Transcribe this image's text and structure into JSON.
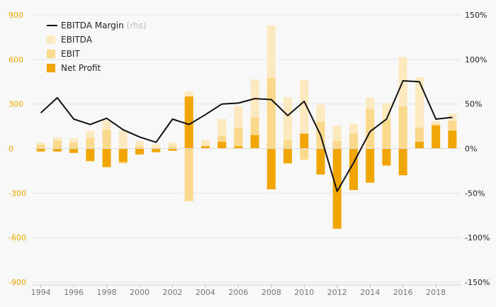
{
  "chart_data": {
    "type": "bar",
    "x": [
      1994,
      1995,
      1996,
      1997,
      1998,
      1999,
      2000,
      2001,
      2002,
      2003,
      2004,
      2005,
      2006,
      2007,
      2008,
      2009,
      2010,
      2011,
      2012,
      2013,
      2014,
      2015,
      2016,
      2017,
      2018,
      2019
    ],
    "x_tick_labels": [
      "1994",
      "1996",
      "1998",
      "2000",
      "2002",
      "2004",
      "2006",
      "2008",
      "2010",
      "2012",
      "2014",
      "2016",
      "2018"
    ],
    "series": [
      {
        "name": "EBITDA",
        "axis": "left",
        "color": "#fde9bf",
        "values": [
          40,
          75,
          70,
          120,
          185,
          120,
          50,
          30,
          40,
          385,
          60,
          200,
          285,
          465,
          830,
          345,
          460,
          295,
          155,
          165,
          345,
          305,
          615,
          480,
          185,
          235
        ]
      },
      {
        "name": "EBIT",
        "axis": "left",
        "color": "#fbd98c",
        "values": [
          25,
          55,
          40,
          70,
          125,
          -100,
          15,
          5,
          15,
          -355,
          20,
          85,
          140,
          210,
          475,
          55,
          -75,
          180,
          50,
          100,
          265,
          195,
          285,
          140,
          165,
          185
        ]
      },
      {
        "name": "Net Profit",
        "axis": "left",
        "color": "#f0a500",
        "values": [
          -20,
          -20,
          -30,
          -85,
          -125,
          -90,
          -40,
          -25,
          -15,
          350,
          15,
          45,
          15,
          90,
          -275,
          -100,
          100,
          -175,
          -540,
          -280,
          -230,
          -115,
          -180,
          45,
          155,
          120
        ]
      },
      {
        "name": "EBITDA Margin",
        "axis": "right",
        "color": "#111111",
        "values": [
          40,
          57,
          33,
          27,
          34,
          21,
          13,
          7,
          33,
          27,
          38,
          50,
          51,
          56,
          55,
          37,
          53,
          15,
          -48,
          -16,
          19,
          33,
          76,
          75,
          33,
          35
        ]
      }
    ],
    "legend_suffix": "(rhs)",
    "y_left": {
      "min": -900,
      "max": 900,
      "ticks": [
        900,
        600,
        300,
        0,
        -300,
        -600,
        -900
      ]
    },
    "y_left_labels": [
      "900",
      "600",
      "300",
      "0",
      "-300",
      "-600",
      "-900"
    ],
    "y_right": {
      "min": -150,
      "max": 150,
      "ticks": [
        150,
        100,
        50,
        0,
        -50,
        -100,
        -150
      ]
    },
    "y_right_labels": [
      "150%",
      "100%",
      "50%",
      "0%",
      "-50%",
      "-100%",
      "-150%"
    ],
    "grid": true,
    "legend_position": "top-left"
  }
}
